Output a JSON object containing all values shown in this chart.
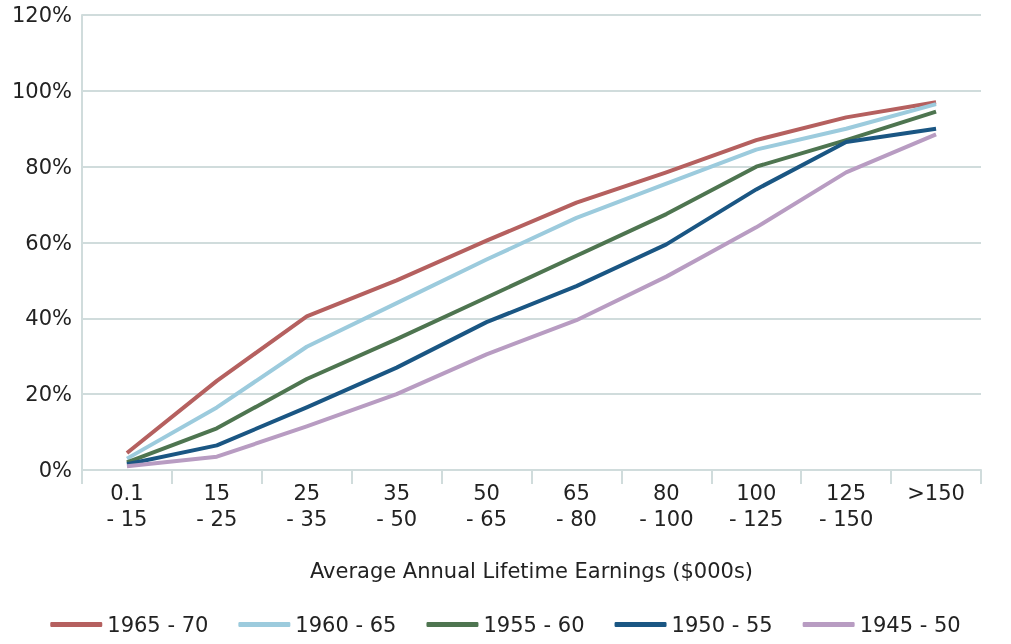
{
  "chart_data": {
    "type": "line",
    "xlabel": "Average Annual Lifetime Earnings ($000s)",
    "categories": [
      "0.1\n- 15",
      "15\n- 25",
      "25\n- 35",
      "35\n- 50",
      "50\n- 65",
      "65\n- 80",
      "80\n- 100",
      "100\n- 125",
      "125\n- 150",
      ">150"
    ],
    "ylim": [
      0,
      120
    ],
    "yticks": [
      {
        "value": 0,
        "label": "0%"
      },
      {
        "value": 20,
        "label": "20%"
      },
      {
        "value": 40,
        "label": "40%"
      },
      {
        "value": 60,
        "label": "60%"
      },
      {
        "value": 80,
        "label": "80%"
      },
      {
        "value": 100,
        "label": "100%"
      },
      {
        "value": 120,
        "label": "120%"
      }
    ],
    "grid": "y",
    "legend": "bottom",
    "marker": "none",
    "line_style": "solid",
    "series": [
      {
        "name": "1965 - 70",
        "color": "#b5605f",
        "values": [
          4.5,
          23.5,
          40.5,
          50,
          60.5,
          70.5,
          78.5,
          87,
          93,
          97
        ]
      },
      {
        "name": "1960 - 65",
        "color": "#9ccbdd",
        "values": [
          3,
          16.5,
          32.5,
          44,
          55.5,
          66.5,
          75.5,
          84.5,
          90,
          96.5
        ]
      },
      {
        "name": "1955 - 60",
        "color": "#4e7550",
        "values": [
          2,
          11,
          24,
          34.5,
          45.5,
          56.5,
          67.5,
          80,
          87,
          94.5
        ]
      },
      {
        "name": "1950 - 55",
        "color": "#1a5683",
        "values": [
          1.5,
          6.5,
          16.5,
          27,
          39,
          48.5,
          59.5,
          74,
          86.5,
          90
        ]
      },
      {
        "name": "1945 - 50",
        "color": "#b89cc2",
        "values": [
          1,
          3.5,
          11.5,
          20,
          30.5,
          39.5,
          51,
          64,
          78.5,
          88.5
        ]
      }
    ]
  }
}
